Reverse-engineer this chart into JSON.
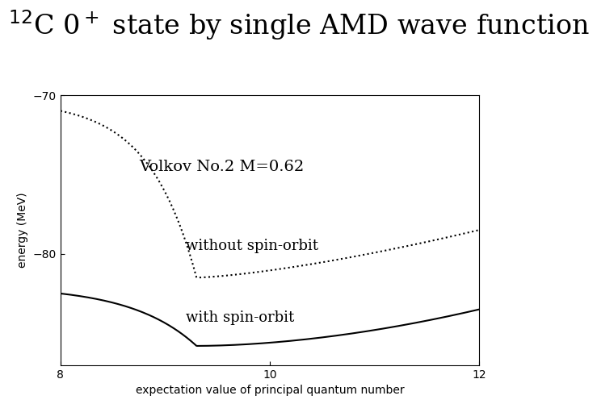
{
  "title_text": "$^{12}$C 0$^+$ state by single AMD wave function",
  "xlabel": "expectation value of principal quantum number",
  "ylabel": "energy (MeV)",
  "xlim": [
    8,
    12
  ],
  "ylim": [
    -87,
    -70
  ],
  "yticks": [
    -80,
    -70
  ],
  "xticks": [
    8,
    10,
    12
  ],
  "annotation": "Volkov No.2 M=0.62",
  "label_without": "without spin-orbit",
  "label_with": "with spin-orbit",
  "bg_color": "#ffffff",
  "curve_color": "#000000",
  "title_fontsize": 24,
  "axis_fontsize": 10,
  "annot_fontsize": 14,
  "label_fontsize": 13
}
